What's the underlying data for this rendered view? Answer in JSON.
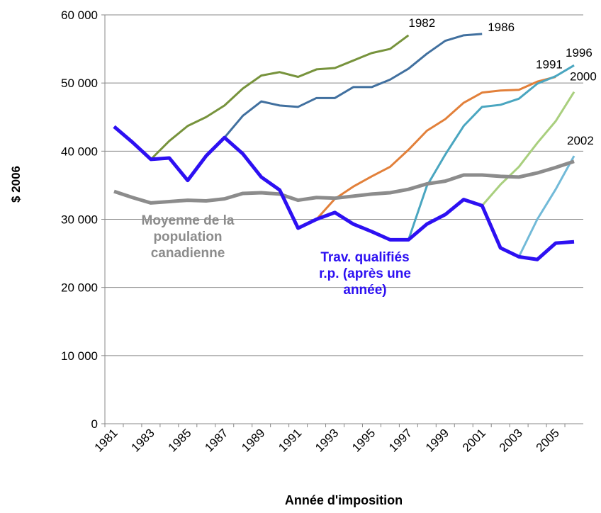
{
  "chart_data": {
    "type": "line",
    "y_label": "$ 2006",
    "x_label": "Année d'imposition",
    "categories": [
      "1981",
      null,
      "1983",
      null,
      "1985",
      null,
      "1987",
      null,
      "1989",
      null,
      "1991",
      null,
      "1993",
      null,
      "1995",
      null,
      "1997",
      null,
      "1999",
      null,
      "2001",
      null,
      "2003",
      null,
      "2005",
      null
    ],
    "ylim": [
      0,
      60000
    ],
    "yticks": [
      0,
      {
        "value": 10000,
        "label": "10 000"
      },
      {
        "value": 20000,
        "label": "20 000"
      },
      {
        "value": 30000,
        "label": "30 000"
      },
      {
        "value": 40000,
        "label": "40 000"
      },
      {
        "value": 50000,
        "label": "50 000"
      },
      {
        "value": 60000,
        "label": "60 000"
      }
    ],
    "grid": true,
    "series": [
      {
        "name": "1982",
        "color": "#77933c",
        "values": [
          null,
          null,
          38800,
          41500,
          43700,
          45000,
          46700,
          49200,
          51100,
          51600,
          50900,
          52000,
          52200,
          53300,
          54400,
          55000,
          57000,
          null,
          null,
          null,
          null,
          null,
          null,
          null,
          null,
          null
        ]
      },
      {
        "name": "1986",
        "color": "#41709f",
        "values": [
          null,
          null,
          null,
          null,
          null,
          null,
          42000,
          45200,
          47300,
          46700,
          46500,
          47800,
          47800,
          49400,
          49400,
          50500,
          52100,
          54300,
          56200,
          57000,
          57200,
          null,
          null,
          null,
          null,
          null
        ]
      },
      {
        "name": "1991",
        "color": "#e2803a",
        "values": [
          null,
          null,
          null,
          null,
          null,
          null,
          null,
          null,
          null,
          null,
          null,
          30000,
          33000,
          34800,
          36300,
          37700,
          40200,
          43000,
          44700,
          47100,
          48600,
          48900,
          49000,
          50200,
          50900,
          null
        ]
      },
      {
        "name": "1996",
        "color": "#4aa6c0",
        "values": [
          null,
          null,
          null,
          null,
          null,
          null,
          null,
          null,
          null,
          null,
          null,
          null,
          null,
          null,
          null,
          null,
          27000,
          34900,
          39500,
          43700,
          46500,
          46800,
          47700,
          49900,
          51000,
          52600
        ]
      },
      {
        "name": "2000",
        "color": "#a9cf7e",
        "values": [
          null,
          null,
          null,
          null,
          null,
          null,
          null,
          null,
          null,
          null,
          null,
          null,
          null,
          null,
          null,
          null,
          null,
          null,
          null,
          null,
          32000,
          35100,
          37700,
          41200,
          44400,
          48700
        ]
      },
      {
        "name": "2002",
        "color": "#72bad8",
        "values": [
          null,
          null,
          null,
          null,
          null,
          null,
          null,
          null,
          null,
          null,
          null,
          null,
          null,
          null,
          null,
          null,
          null,
          null,
          null,
          null,
          null,
          null,
          24500,
          30000,
          34400,
          39300
        ]
      },
      {
        "name": "Moyenne de la population canadienne",
        "color": "#8c8c8c",
        "values": [
          34100,
          33200,
          32400,
          32600,
          32800,
          32700,
          33000,
          33800,
          33900,
          33700,
          32800,
          33200,
          33100,
          33400,
          33700,
          33900,
          34400,
          35200,
          35600,
          36500,
          36500,
          36300,
          36200,
          36800,
          37600,
          38500
        ]
      },
      {
        "name": "Trav. qualifiés r.p. (après une année)",
        "color": "#2d10f2",
        "values": [
          43600,
          41300,
          38800,
          39000,
          35700,
          39300,
          42000,
          39600,
          36200,
          34300,
          28700,
          30000,
          31000,
          29300,
          28200,
          27000,
          27000,
          29300,
          30700,
          32900,
          32000,
          25800,
          24500,
          24100,
          26500,
          26700
        ]
      }
    ]
  }
}
